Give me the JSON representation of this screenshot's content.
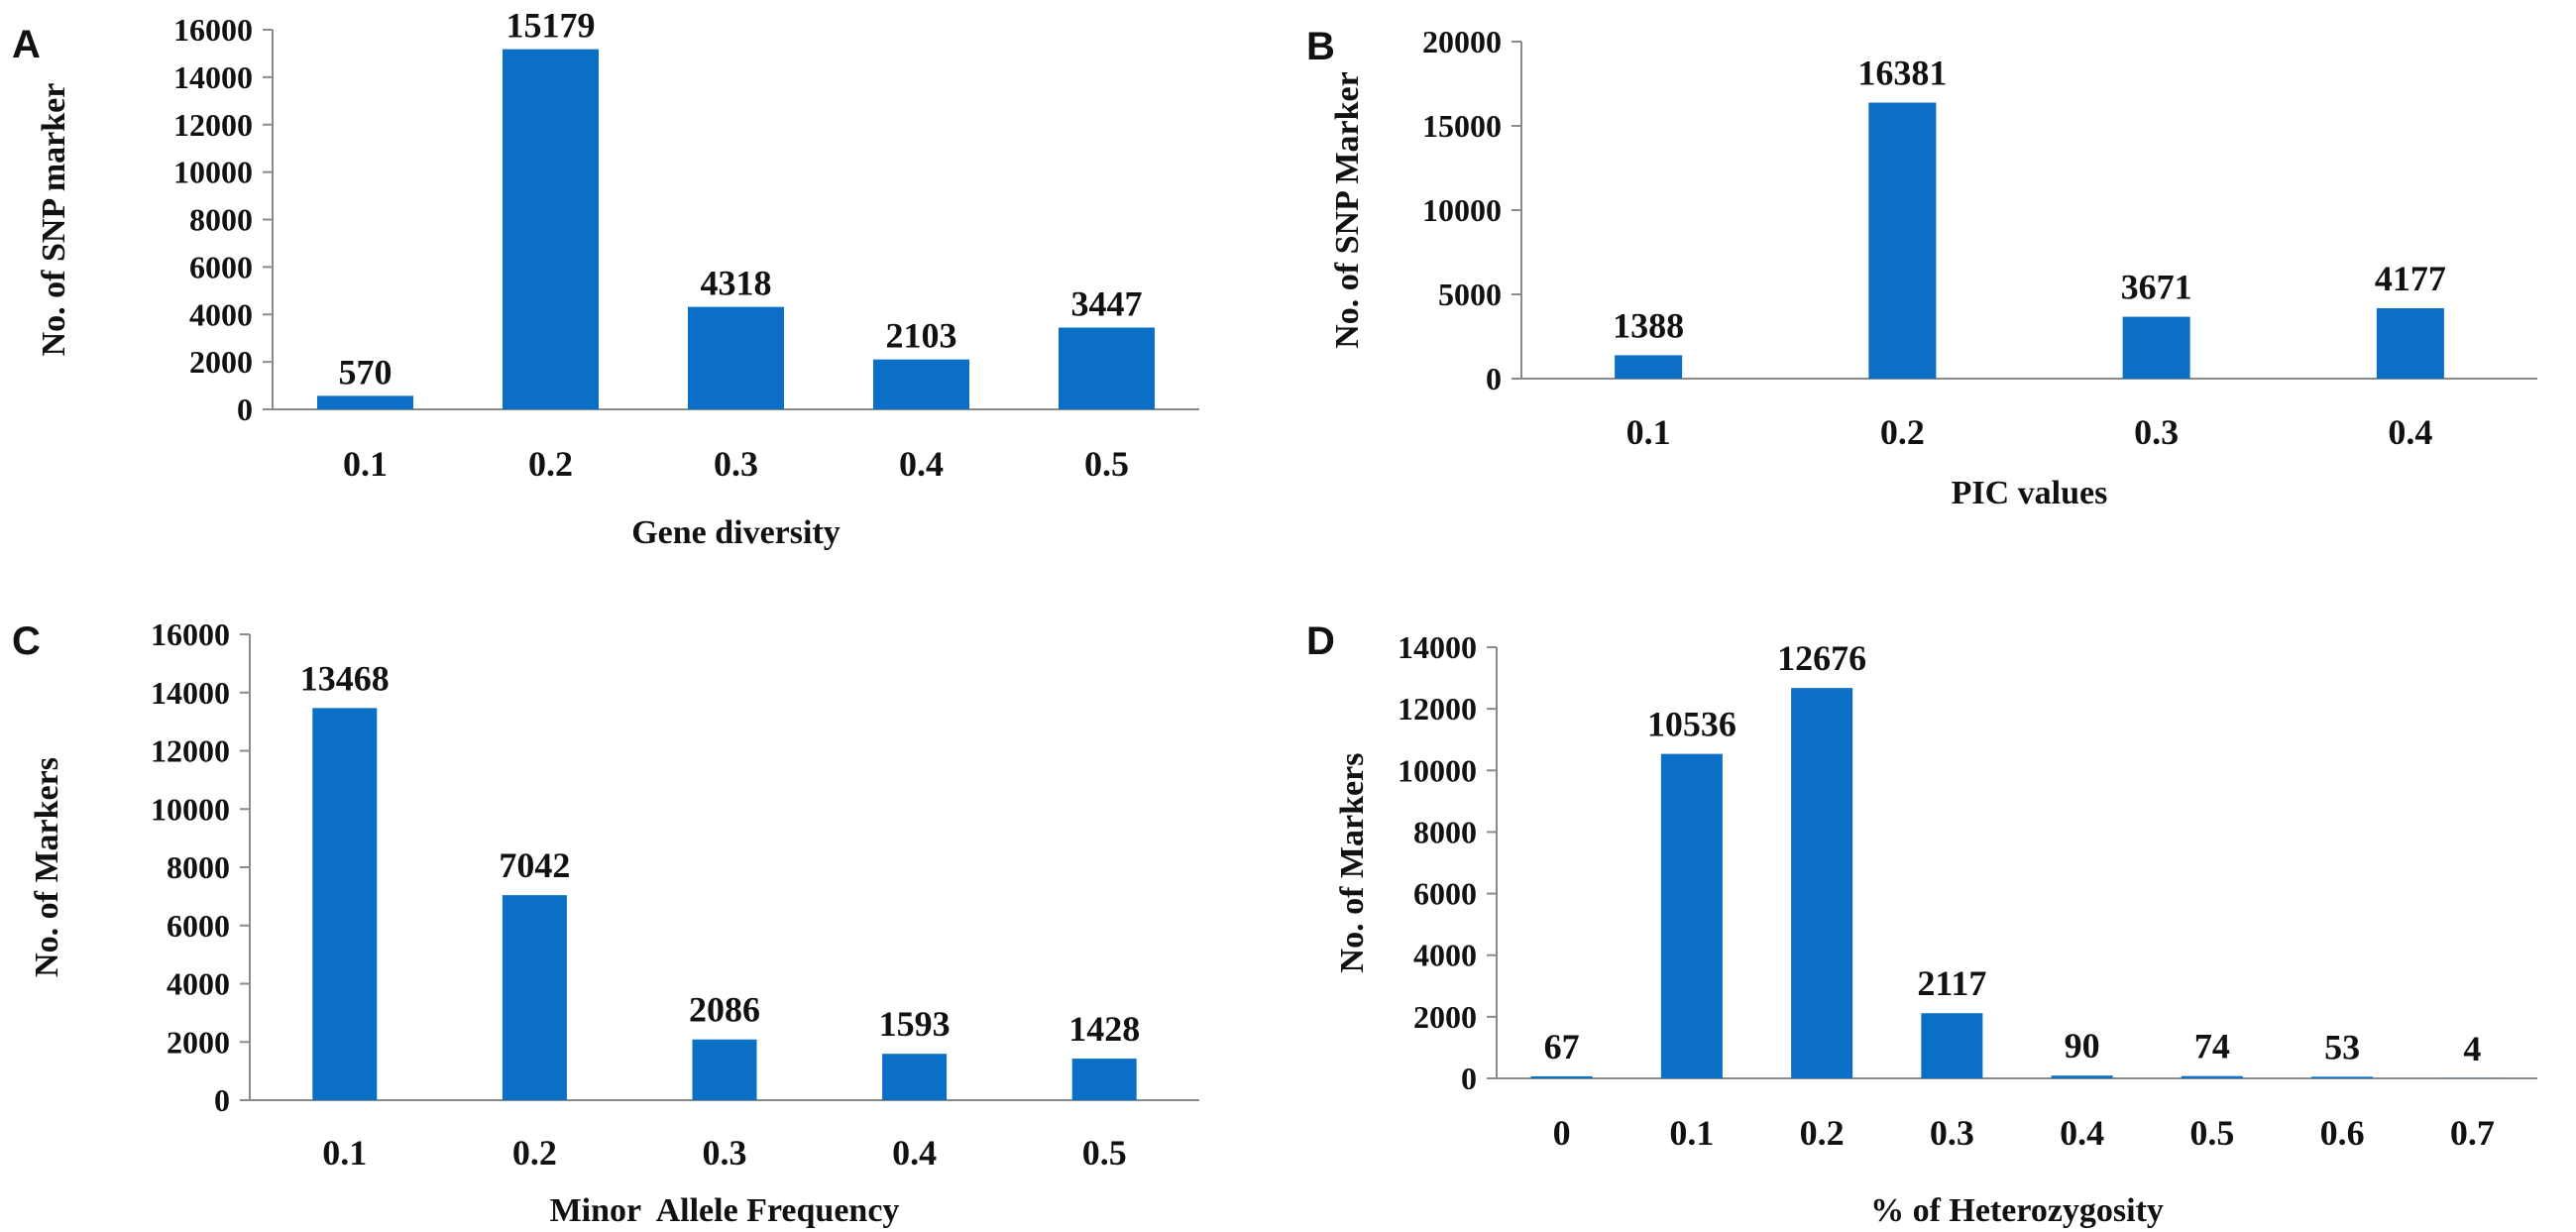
{
  "colors": {
    "bar": "#0b6fc6",
    "axis": "#8a8a8a",
    "text": "#111111"
  },
  "chart_data": [
    {
      "panel": "A",
      "type": "bar",
      "categories": [
        "0.1",
        "0.2",
        "0.3",
        "0.4",
        "0.5"
      ],
      "values": [
        570,
        15179,
        4318,
        2103,
        3447
      ],
      "data_labels": [
        "570",
        "15179",
        "4318",
        "2103",
        "3447"
      ],
      "xlabel": "Gene diversity",
      "ylabel": "No. of SNP marker",
      "ylim": [
        0,
        16000
      ],
      "yticks": [
        "0",
        "2000",
        "4000",
        "6000",
        "8000",
        "10000",
        "12000",
        "14000",
        "16000"
      ],
      "grid": false
    },
    {
      "panel": "B",
      "type": "bar",
      "categories": [
        "0.1",
        "0.2",
        "0.3",
        "0.4"
      ],
      "values": [
        1388,
        16381,
        3671,
        4177
      ],
      "data_labels": [
        "1388",
        "16381",
        "3671",
        "4177"
      ],
      "xlabel": "PIC values",
      "ylabel": "No. of SNP Marker",
      "ylim": [
        0,
        20000
      ],
      "yticks": [
        "0",
        "5000",
        "10000",
        "15000",
        "20000"
      ],
      "grid": false
    },
    {
      "panel": "C",
      "type": "bar",
      "categories": [
        "0.1",
        "0.2",
        "0.3",
        "0.4",
        "0.5"
      ],
      "values": [
        13468,
        7042,
        2086,
        1593,
        1428
      ],
      "data_labels": [
        "13468",
        "7042",
        "2086",
        "1593",
        "1428"
      ],
      "xlabel": "Minor  Allele Frequency",
      "ylabel": "No. of Markers",
      "ylim": [
        0,
        16000
      ],
      "yticks": [
        "0",
        "2000",
        "4000",
        "6000",
        "8000",
        "10000",
        "12000",
        "14000",
        "16000"
      ],
      "grid": false
    },
    {
      "panel": "D",
      "type": "bar",
      "categories": [
        "0",
        "0.1",
        "0.2",
        "0.3",
        "0.4",
        "0.5",
        "0.6",
        "0.7"
      ],
      "values": [
        67,
        10536,
        12676,
        2117,
        90,
        74,
        53,
        4
      ],
      "data_labels": [
        "67",
        "10536",
        "12676",
        "2117",
        "90",
        "74",
        "53",
        "4"
      ],
      "xlabel": "% of Heterozygosity",
      "ylabel": "No. of Markers",
      "ylim": [
        0,
        14000
      ],
      "yticks": [
        "0",
        "2000",
        "4000",
        "6000",
        "8000",
        "10000",
        "12000",
        "14000"
      ],
      "grid": false
    }
  ]
}
